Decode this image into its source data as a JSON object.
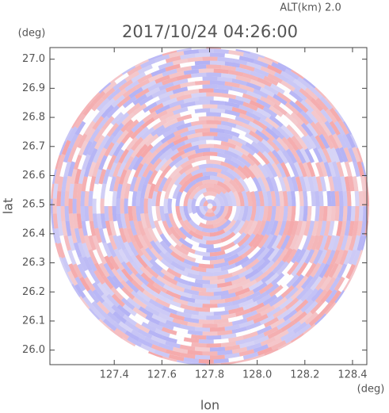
{
  "chart_data": {
    "type": "radar-ppi",
    "header": "ALT(km) 2.0",
    "title": "2017/10/24 04:26:00",
    "x_label": "lon",
    "y_label": "lat",
    "x_unit": "(deg)",
    "y_unit": "(deg)",
    "xlim": [
      127.13,
      128.46
    ],
    "ylim": [
      25.95,
      27.04
    ],
    "xticks": [
      127.4,
      127.6,
      127.8,
      {
        "value": 128.0,
        "label": "128.0"
      },
      128.2,
      128.4
    ],
    "yticks": [
      {
        "value": 26.0,
        "label": "26.0"
      },
      26.1,
      26.2,
      26.3,
      26.4,
      26.5,
      26.6,
      26.7,
      26.8,
      26.9,
      {
        "value": 27.0,
        "label": "27.0"
      }
    ]
  }
}
